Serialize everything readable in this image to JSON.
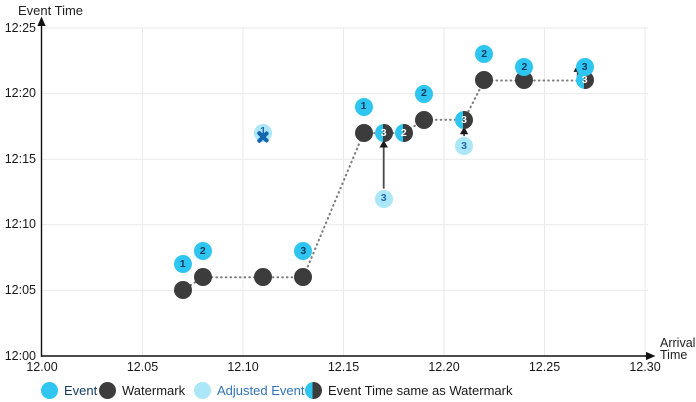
{
  "axes": {
    "y_title": "Event Time",
    "x_title_line1": "Arrival",
    "x_title_line2": "Time"
  },
  "legend": {
    "items": [
      {
        "label": "Event",
        "type": "event"
      },
      {
        "label": "Watermark",
        "type": "watermark"
      },
      {
        "label": "Adjusted Event",
        "type": "adjusted"
      },
      {
        "label": "Event Time same as Watermark",
        "type": "same"
      }
    ]
  },
  "colors": {
    "event": "#2ec6f1",
    "watermark": "#3c3c3c",
    "adjusted_event": "#abe6f9",
    "event_number_text": "#0c3a5e",
    "adjusted_number_text": "#2069ae",
    "same_number_text": "#ffffff",
    "dropped_x": "#1566ad",
    "legend_event_text": "#123a5f",
    "legend_adjusted_text": "#2f74b9",
    "dotted_line": "#7e7e7e",
    "gridline": "#e9e9e9",
    "axis": "#111111",
    "arrow_shaft": "#4a4a4a",
    "arrow_head": "#1a1a1a"
  },
  "chart_data": {
    "type": "scatter",
    "title": "",
    "xlabel": "Arrival Time",
    "ylabel": "Event Time",
    "grid": true,
    "legend_position": "bottom",
    "x_range": [
      12.0,
      12.3
    ],
    "y_range_minutes": [
      0,
      25
    ],
    "x_tick_values": [
      12.0,
      12.05,
      12.1,
      12.15,
      12.2,
      12.25,
      12.3
    ],
    "x_tick_labels": [
      "12.00",
      "12.05",
      "12.10",
      "12.15",
      "12.20",
      "12.25",
      "12.30"
    ],
    "y_tick_values": [
      0,
      5,
      10,
      15,
      20,
      25
    ],
    "y_tick_labels": [
      "12:00",
      "12:05",
      "12:10",
      "12:15",
      "12:20",
      "12:25"
    ],
    "series": [
      {
        "name": "Event",
        "marker": "event",
        "points": [
          {
            "label": "1",
            "arrival": 12.07,
            "event_time": "12:07",
            "minutes": 7
          },
          {
            "label": "2",
            "arrival": 12.08,
            "event_time": "12:08",
            "minutes": 8
          },
          {
            "label": "3",
            "arrival": 12.13,
            "event_time": "12:08",
            "minutes": 8
          },
          {
            "label": "1",
            "arrival": 12.16,
            "event_time": "12:19",
            "minutes": 19
          },
          {
            "label": "2",
            "arrival": 12.19,
            "event_time": "12:20",
            "minutes": 20
          },
          {
            "label": "2",
            "arrival": 12.22,
            "event_time": "12:23",
            "minutes": 23
          },
          {
            "label": "2",
            "arrival": 12.24,
            "event_time": "12:22",
            "minutes": 22
          },
          {
            "label": "3",
            "arrival": 12.27,
            "event_time": "12:22",
            "minutes": 22
          }
        ]
      },
      {
        "name": "Watermark",
        "marker": "watermark",
        "points": [
          {
            "label": "",
            "arrival": 12.07,
            "event_time": "12:05",
            "minutes": 5
          },
          {
            "label": "",
            "arrival": 12.08,
            "event_time": "12:06",
            "minutes": 6
          },
          {
            "label": "",
            "arrival": 12.11,
            "event_time": "12:06",
            "minutes": 6
          },
          {
            "label": "",
            "arrival": 12.13,
            "event_time": "12:06",
            "minutes": 6
          },
          {
            "label": "",
            "arrival": 12.16,
            "event_time": "12:17",
            "minutes": 17
          },
          {
            "label": "",
            "arrival": 12.19,
            "event_time": "12:18",
            "minutes": 18
          },
          {
            "label": "",
            "arrival": 12.22,
            "event_time": "12:21",
            "minutes": 21
          },
          {
            "label": "",
            "arrival": 12.24,
            "event_time": "12:21",
            "minutes": 21
          }
        ]
      },
      {
        "name": "Adjusted Event",
        "marker": "adjusted",
        "points": [
          {
            "label": "3",
            "arrival": 12.17,
            "event_time": "12:12",
            "minutes": 12
          },
          {
            "label": "3",
            "arrival": 12.21,
            "event_time": "12:16",
            "minutes": 16
          }
        ]
      },
      {
        "name": "Event Time same as Watermark",
        "marker": "same",
        "points": [
          {
            "label": "3",
            "arrival": 12.17,
            "event_time": "12:17",
            "minutes": 17
          },
          {
            "label": "2",
            "arrival": 12.18,
            "event_time": "12:17",
            "minutes": 17
          },
          {
            "label": "3",
            "arrival": 12.21,
            "event_time": "12:18",
            "minutes": 18
          },
          {
            "label": "3",
            "arrival": 12.27,
            "event_time": "12:21",
            "minutes": 21
          }
        ]
      },
      {
        "name": "Dropped Event",
        "marker": "dropped",
        "points": [
          {
            "label": "1",
            "arrival": 12.11,
            "event_time": "12:17",
            "minutes": 17
          }
        ]
      }
    ],
    "watermark_path": [
      [
        12.07,
        5
      ],
      [
        12.08,
        6
      ],
      [
        12.11,
        6
      ],
      [
        12.13,
        6
      ],
      [
        12.16,
        17
      ],
      [
        12.17,
        17
      ],
      [
        12.18,
        17
      ],
      [
        12.19,
        18
      ],
      [
        12.21,
        18
      ],
      [
        12.22,
        21
      ],
      [
        12.24,
        21
      ],
      [
        12.27,
        21
      ]
    ],
    "arrows": [
      {
        "arrival": 12.17,
        "from_minutes": 12,
        "to_minutes": 17,
        "style": "long"
      },
      {
        "arrival": 12.21,
        "from_minutes": 16,
        "to_minutes": 18,
        "style": "long"
      },
      {
        "arrival": 12.27,
        "from_minutes": 21,
        "to_minutes": 22,
        "style": "beside"
      }
    ]
  }
}
